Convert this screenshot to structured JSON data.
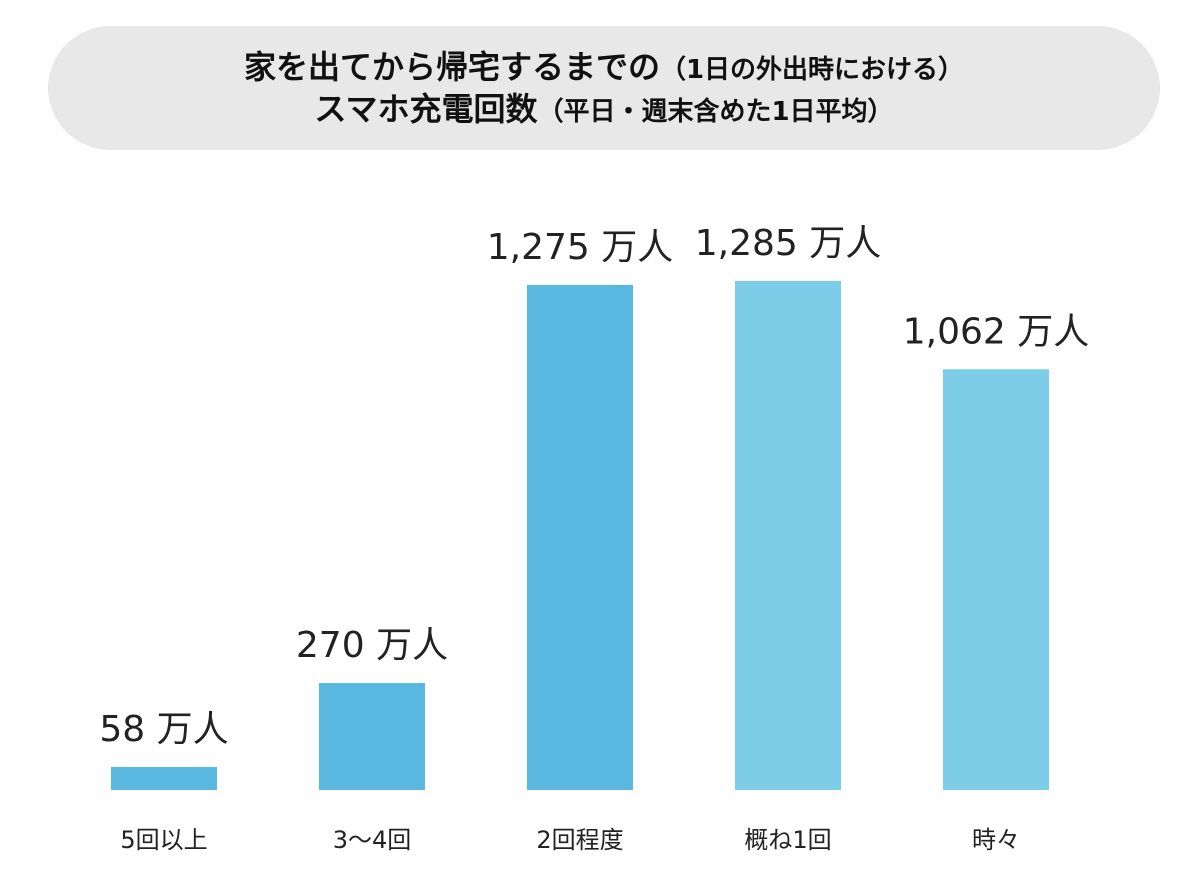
{
  "title": {
    "line1": "家を出てから帰宅するまでの",
    "line1_note": "（1日の外出時における）",
    "line2": "スマホ充電回数",
    "line2_note": "（平日・週末含めた1日平均）"
  },
  "chart_data": {
    "type": "bar",
    "categories": [
      "5回以上",
      "3〜4回",
      "2回程度",
      "概ね1回",
      "時々"
    ],
    "values": [
      58,
      270,
      1275,
      1285,
      1062
    ],
    "value_labels": [
      "58 万人",
      "270 万人",
      "1,275 万人",
      "1,285 万人",
      "1,062 万人"
    ],
    "colors": [
      "#5ab8e0",
      "#5ab8e0",
      "#5ab8e0",
      "#7ecde8",
      "#7ecde8"
    ],
    "unit": "万人",
    "ylim": [
      0,
      1300
    ],
    "grid": false,
    "legend": "none"
  }
}
